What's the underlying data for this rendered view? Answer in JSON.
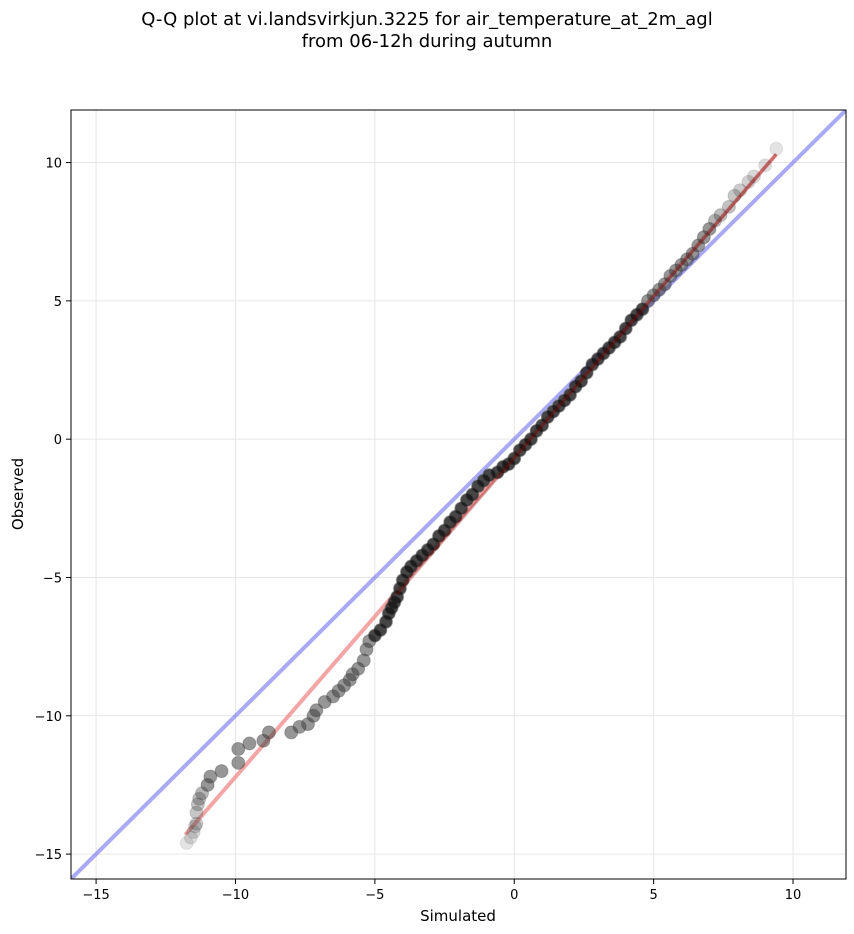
{
  "chart_data": {
    "type": "scatter",
    "title_line1": "Q-Q plot at vi.landsvirkjun.3225 for air_temperature_at_2m_agl",
    "title_line2": "from 06-12h during autumn",
    "xlabel": "Simulated",
    "ylabel": "Observed",
    "xlim": [
      -15.9,
      11.9
    ],
    "ylim": [
      -15.9,
      11.9
    ],
    "xticks": [
      -15,
      -10,
      -5,
      0,
      5,
      10
    ],
    "yticks": [
      -15,
      -10,
      -5,
      0,
      5,
      10
    ],
    "grid": true,
    "identity_line": {
      "from": [
        -15.9,
        -15.9
      ],
      "to": [
        11.9,
        11.9
      ],
      "color": "#6f6fee"
    },
    "fit_line": {
      "from": [
        -11.8,
        -14.3
      ],
      "to": [
        9.4,
        10.3
      ],
      "color": "#f08080"
    },
    "point_color": "#404040",
    "points": [
      [
        -11.75,
        -14.6
      ],
      [
        -11.6,
        -14.4
      ],
      [
        -11.5,
        -14.2
      ],
      [
        -11.45,
        -14.0
      ],
      [
        -11.4,
        -13.9
      ],
      [
        -11.4,
        -13.5
      ],
      [
        -11.35,
        -13.2
      ],
      [
        -11.3,
        -13.0
      ],
      [
        -11.2,
        -12.8
      ],
      [
        -11.0,
        -12.5
      ],
      [
        -10.9,
        -12.2
      ],
      [
        -10.5,
        -12.0
      ],
      [
        -9.9,
        -11.7
      ],
      [
        -9.9,
        -11.2
      ],
      [
        -9.5,
        -11.0
      ],
      [
        -9.0,
        -10.9
      ],
      [
        -8.8,
        -10.6
      ],
      [
        -8.0,
        -10.6
      ],
      [
        -7.7,
        -10.4
      ],
      [
        -7.4,
        -10.3
      ],
      [
        -7.2,
        -10.0
      ],
      [
        -7.1,
        -9.8
      ],
      [
        -6.8,
        -9.5
      ],
      [
        -6.5,
        -9.3
      ],
      [
        -6.3,
        -9.1
      ],
      [
        -6.1,
        -8.9
      ],
      [
        -5.9,
        -8.7
      ],
      [
        -5.8,
        -8.5
      ],
      [
        -5.6,
        -8.3
      ],
      [
        -5.4,
        -8.0
      ],
      [
        -5.3,
        -7.6
      ],
      [
        -5.2,
        -7.3
      ],
      [
        -5.0,
        -7.1
      ],
      [
        -4.8,
        -6.9
      ],
      [
        -4.6,
        -6.6
      ],
      [
        -4.5,
        -6.3
      ],
      [
        -4.4,
        -6.1
      ],
      [
        -4.3,
        -5.9
      ],
      [
        -4.2,
        -5.7
      ],
      [
        -4.1,
        -5.4
      ],
      [
        -4.0,
        -5.1
      ],
      [
        -3.85,
        -4.8
      ],
      [
        -3.7,
        -4.6
      ],
      [
        -3.5,
        -4.4
      ],
      [
        -3.3,
        -4.2
      ],
      [
        -3.1,
        -4.0
      ],
      [
        -2.9,
        -3.8
      ],
      [
        -2.7,
        -3.5
      ],
      [
        -2.5,
        -3.3
      ],
      [
        -2.3,
        -3.0
      ],
      [
        -2.1,
        -2.8
      ],
      [
        -1.9,
        -2.5
      ],
      [
        -1.7,
        -2.2
      ],
      [
        -1.5,
        -2.0
      ],
      [
        -1.3,
        -1.7
      ],
      [
        -1.1,
        -1.5
      ],
      [
        -0.9,
        -1.3
      ],
      [
        -0.6,
        -1.2
      ],
      [
        -0.4,
        -1.0
      ],
      [
        -0.2,
        -0.9
      ],
      [
        0.0,
        -0.7
      ],
      [
        0.2,
        -0.4
      ],
      [
        0.4,
        -0.2
      ],
      [
        0.6,
        0.0
      ],
      [
        0.8,
        0.3
      ],
      [
        1.0,
        0.5
      ],
      [
        1.2,
        0.8
      ],
      [
        1.4,
        1.0
      ],
      [
        1.6,
        1.2
      ],
      [
        1.8,
        1.4
      ],
      [
        2.0,
        1.6
      ],
      [
        2.2,
        1.9
      ],
      [
        2.4,
        2.1
      ],
      [
        2.6,
        2.4
      ],
      [
        2.8,
        2.7
      ],
      [
        3.0,
        2.9
      ],
      [
        3.2,
        3.1
      ],
      [
        3.4,
        3.3
      ],
      [
        3.6,
        3.5
      ],
      [
        3.8,
        3.7
      ],
      [
        4.0,
        4.0
      ],
      [
        4.2,
        4.3
      ],
      [
        4.4,
        4.5
      ],
      [
        4.6,
        4.7
      ],
      [
        4.8,
        5.0
      ],
      [
        5.0,
        5.2
      ],
      [
        5.2,
        5.4
      ],
      [
        5.4,
        5.6
      ],
      [
        5.6,
        5.9
      ],
      [
        5.8,
        6.1
      ],
      [
        6.0,
        6.3
      ],
      [
        6.2,
        6.5
      ],
      [
        6.4,
        6.7
      ],
      [
        6.6,
        7.0
      ],
      [
        6.8,
        7.3
      ],
      [
        7.0,
        7.6
      ],
      [
        7.2,
        7.9
      ],
      [
        7.4,
        8.1
      ],
      [
        7.7,
        8.4
      ],
      [
        7.9,
        8.8
      ],
      [
        8.1,
        9.0
      ],
      [
        8.4,
        9.3
      ],
      [
        8.6,
        9.5
      ],
      [
        9.0,
        9.9
      ],
      [
        9.4,
        10.5
      ]
    ]
  }
}
